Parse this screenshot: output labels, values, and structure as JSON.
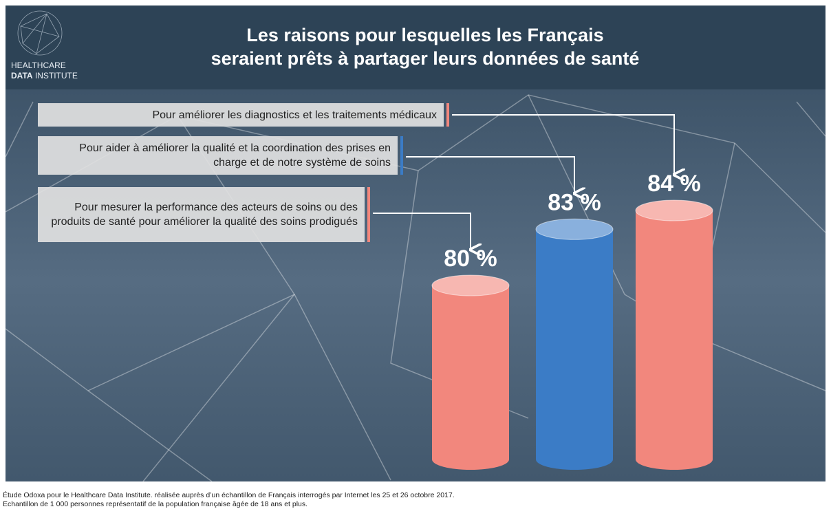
{
  "logo": [
    "HEALTHCARE",
    "DATA",
    "INSTITUTE"
  ],
  "chart_data": {
    "type": "bar",
    "title": [
      "Les raisons pour lesquelles les Français",
      "seraient prêts à partager leurs données de santé"
    ],
    "categories": [
      "Pour améliorer les diagnostics et les traitements médicaux",
      "Pour aider à améliorer la qualité et la coordination des prises en charge et de notre système de soins",
      "Pour mesurer la performance des acteurs de soins ou des produits de santé pour améliorer la qualité des soins prodigués"
    ],
    "values": [
      84,
      83,
      80
    ],
    "value_labels": [
      "84 %",
      "83 %",
      "80 %"
    ],
    "colors": [
      "#f2877d",
      "#3b7cc6",
      "#f2877d"
    ]
  },
  "notes": [
    "Étude Odoxa pour le Healthcare Data Institute. réalisée auprès d’un échantillon de Français interrogés par Internet les 25 et 26 octobre 2017.",
    "Echantillon de 1 000 personnes représentatif de la population française âgée de 18 ans et plus."
  ]
}
